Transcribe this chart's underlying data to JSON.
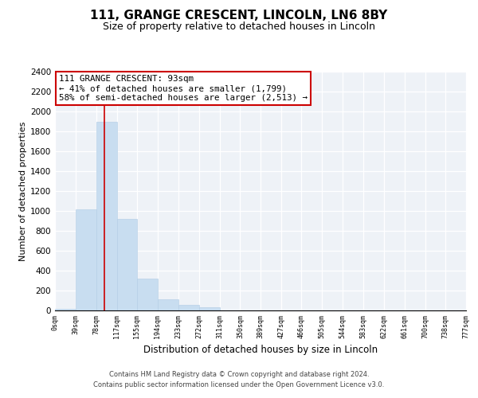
{
  "title": "111, GRANGE CRESCENT, LINCOLN, LN6 8BY",
  "subtitle": "Size of property relative to detached houses in Lincoln",
  "xlabel": "Distribution of detached houses by size in Lincoln",
  "ylabel": "Number of detached properties",
  "bar_color": "#c8ddf0",
  "bar_edge_color": "#b0cce4",
  "vline_color": "#cc0000",
  "vline_x": 93,
  "annotation_line1": "111 GRANGE CRESCENT: 93sqm",
  "annotation_line2": "← 41% of detached houses are smaller (1,799)",
  "annotation_line3": "58% of semi-detached houses are larger (2,513) →",
  "annotation_box_color": "#ffffff",
  "annotation_box_edge": "#cc0000",
  "bin_edges": [
    0,
    39,
    78,
    117,
    155,
    194,
    233,
    272,
    311,
    350,
    389,
    427,
    466,
    505,
    544,
    583,
    622,
    661,
    700,
    738,
    777
  ],
  "bin_labels": [
    "0sqm",
    "39sqm",
    "78sqm",
    "117sqm",
    "155sqm",
    "194sqm",
    "233sqm",
    "272sqm",
    "311sqm",
    "350sqm",
    "389sqm",
    "427sqm",
    "466sqm",
    "505sqm",
    "544sqm",
    "583sqm",
    "622sqm",
    "661sqm",
    "700sqm",
    "738sqm",
    "777sqm"
  ],
  "bar_heights": [
    20,
    1020,
    1900,
    920,
    320,
    110,
    55,
    30,
    0,
    0,
    0,
    0,
    0,
    0,
    0,
    0,
    0,
    0,
    0,
    0
  ],
  "ylim": [
    0,
    2400
  ],
  "yticks": [
    0,
    200,
    400,
    600,
    800,
    1000,
    1200,
    1400,
    1600,
    1800,
    2000,
    2200,
    2400
  ],
  "footer1": "Contains HM Land Registry data © Crown copyright and database right 2024.",
  "footer2": "Contains public sector information licensed under the Open Government Licence v3.0.",
  "plot_bg_color": "#eef2f7"
}
